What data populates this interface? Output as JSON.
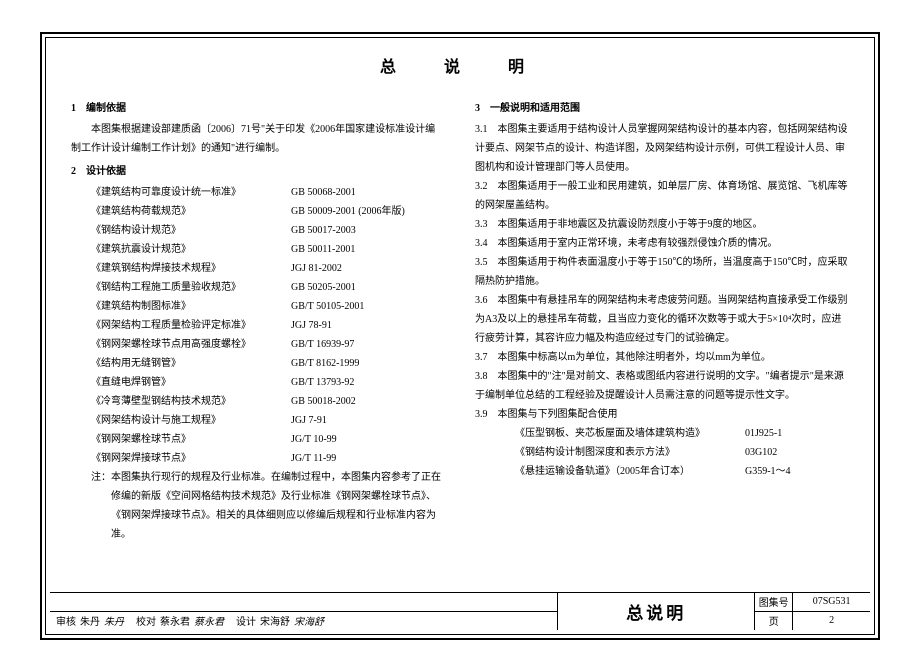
{
  "title": "总　说　明",
  "sec1_head": "1　编制依据",
  "sec1_para": "本图集根据建设部建质函〔2006〕71号\"关于印发《2006年国家建设标准设计编制工作计设计编制工作计划》的通知\"进行编制。",
  "sec2_head": "2　设计依据",
  "standards": [
    {
      "name": "《建筑结构可靠度设计统一标准》",
      "code": "GB 50068-2001"
    },
    {
      "name": "《建筑结构荷载规范》",
      "code": "GB 50009-2001 (2006年版)"
    },
    {
      "name": "《钢结构设计规范》",
      "code": "GB 50017-2003"
    },
    {
      "name": "《建筑抗震设计规范》",
      "code": "GB 50011-2001"
    },
    {
      "name": "《建筑钢结构焊接技术规程》",
      "code": "JGJ 81-2002"
    },
    {
      "name": "《钢结构工程施工质量验收规范》",
      "code": "GB 50205-2001"
    },
    {
      "name": "《建筑结构制图标准》",
      "code": "GB/T 50105-2001"
    },
    {
      "name": "《网架结构工程质量检验评定标准》",
      "code": "JGJ 78-91"
    },
    {
      "name": "《钢网架螺栓球节点用高强度螺栓》",
      "code": "GB/T 16939-97"
    },
    {
      "name": "《结构用无缝钢管》",
      "code": "GB/T 8162-1999"
    },
    {
      "name": "《直缝电焊钢管》",
      "code": "GB/T 13793-92"
    },
    {
      "name": "《冷弯薄壁型钢结构技术规范》",
      "code": "GB 50018-2002"
    },
    {
      "name": "《网架结构设计与施工规程》",
      "code": "JGJ 7-91"
    },
    {
      "name": "《钢网架螺栓球节点》",
      "code": "JG/T 10-99"
    },
    {
      "name": "《钢网架焊接球节点》",
      "code": "JG/T 11-99"
    }
  ],
  "sec2_note": "注：本图集执行现行的规程及行业标准。在编制过程中，本图集内容参考了正在修编的新版《空间网格结构技术规范》及行业标准《钢网架螺栓球节点》、《钢网架焊接球节点》。相关的具体细则应以修编后规程和行业标准内容为准。",
  "sec3_head": "3　一般说明和适用范围",
  "sec3_items": [
    "3.1　本图集主要适用于结构设计人员掌握网架结构设计的基本内容，包括网架结构设计要点、网架节点的设计、构造详图，及网架结构设计示例，可供工程设计人员、审图机构和设计管理部门等人员使用。",
    "3.2　本图集适用于一般工业和民用建筑，如单层厂房、体育场馆、展览馆、飞机库等的网架屋盖结构。",
    "3.3　本图集适用于非地震区及抗震设防烈度小于等于9度的地区。",
    "3.4　本图集适用于室内正常环境，未考虑有较强烈侵蚀介质的情况。",
    "3.5　本图集适用于构件表面温度小于等于150℃的场所，当温度高于150℃时，应采取隔热防护措施。",
    "3.6　本图集中有悬挂吊车的网架结构未考虑疲劳问题。当网架结构直接承受工作级别为A3及以上的悬挂吊车荷载，且当应力变化的循环次数等于或大于5×10⁴次时，应进行疲劳计算，其容许应力幅及构造应经过专门的试验确定。",
    "3.7　本图集中标高以m为单位，其他除注明者外，均以mm为单位。",
    "3.8　本图集中的\"注\"是对前文、表格或图纸内容进行说明的文字。\"编者提示\"是来源于编制单位总结的工程经验及提醒设计人员需注意的问题等提示性文字。",
    "3.9　本图集与下列图集配合使用"
  ],
  "sec3_sub": [
    {
      "name": "《压型钢板、夹芯板屋面及墙体建筑构造》",
      "code": "01J925-1"
    },
    {
      "name": "《钢结构设计制图深度和表示方法》",
      "code": "03G102"
    },
    {
      "name": "《悬挂运输设备轨道》（2005年合订本）",
      "code": "G359-1～4"
    }
  ],
  "titleblock": {
    "mid": "总说明",
    "set_label": "图集号",
    "set_code": "07SG531",
    "page_label": "页",
    "page_num": "2",
    "sigs": [
      {
        "label": "审核",
        "name": "朱丹",
        "hand": "朱丹"
      },
      {
        "label": "校对",
        "name": "蔡永君",
        "hand": "蔡永君"
      },
      {
        "label": "设计",
        "name": "宋海舒",
        "hand": "宋海舒"
      }
    ]
  }
}
